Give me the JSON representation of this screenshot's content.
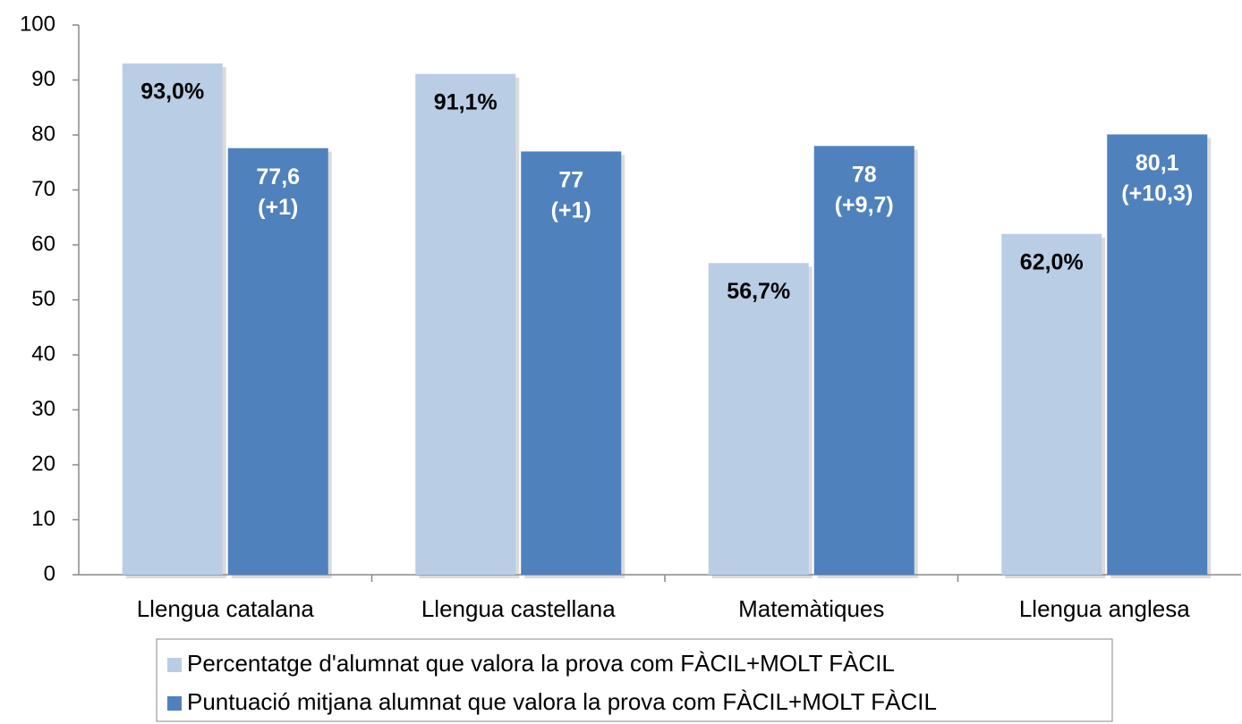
{
  "chart_data": {
    "type": "bar",
    "categories": [
      "Llengua catalana",
      "Llengua castellana",
      "Matemàtiques",
      "Llengua anglesa"
    ],
    "series": [
      {
        "name": "Percentatge d'alumnat que valora la prova com FÀCIL+MOLT FÀCIL",
        "color": "#b9cde5",
        "values": [
          93.0,
          91.1,
          56.7,
          62.0
        ],
        "value_labels": [
          "93,0%",
          "91,1%",
          "56,7%",
          "62,0%"
        ]
      },
      {
        "name": "Puntuació mitjana alumnat que valora la prova com FÀCIL+MOLT FÀCIL",
        "color": "#4f81bd",
        "values": [
          77.6,
          77,
          78,
          80.1
        ],
        "value_labels": [
          "77,6\n(+1)",
          "77\n(+1)",
          "78\n(+9,7)",
          "80,1\n(+10,3)"
        ]
      }
    ],
    "ylim": [
      0,
      100
    ],
    "yticks": [
      0,
      10,
      20,
      30,
      40,
      50,
      60,
      70,
      80,
      90,
      100
    ],
    "grid": false,
    "legend": "bottom"
  }
}
